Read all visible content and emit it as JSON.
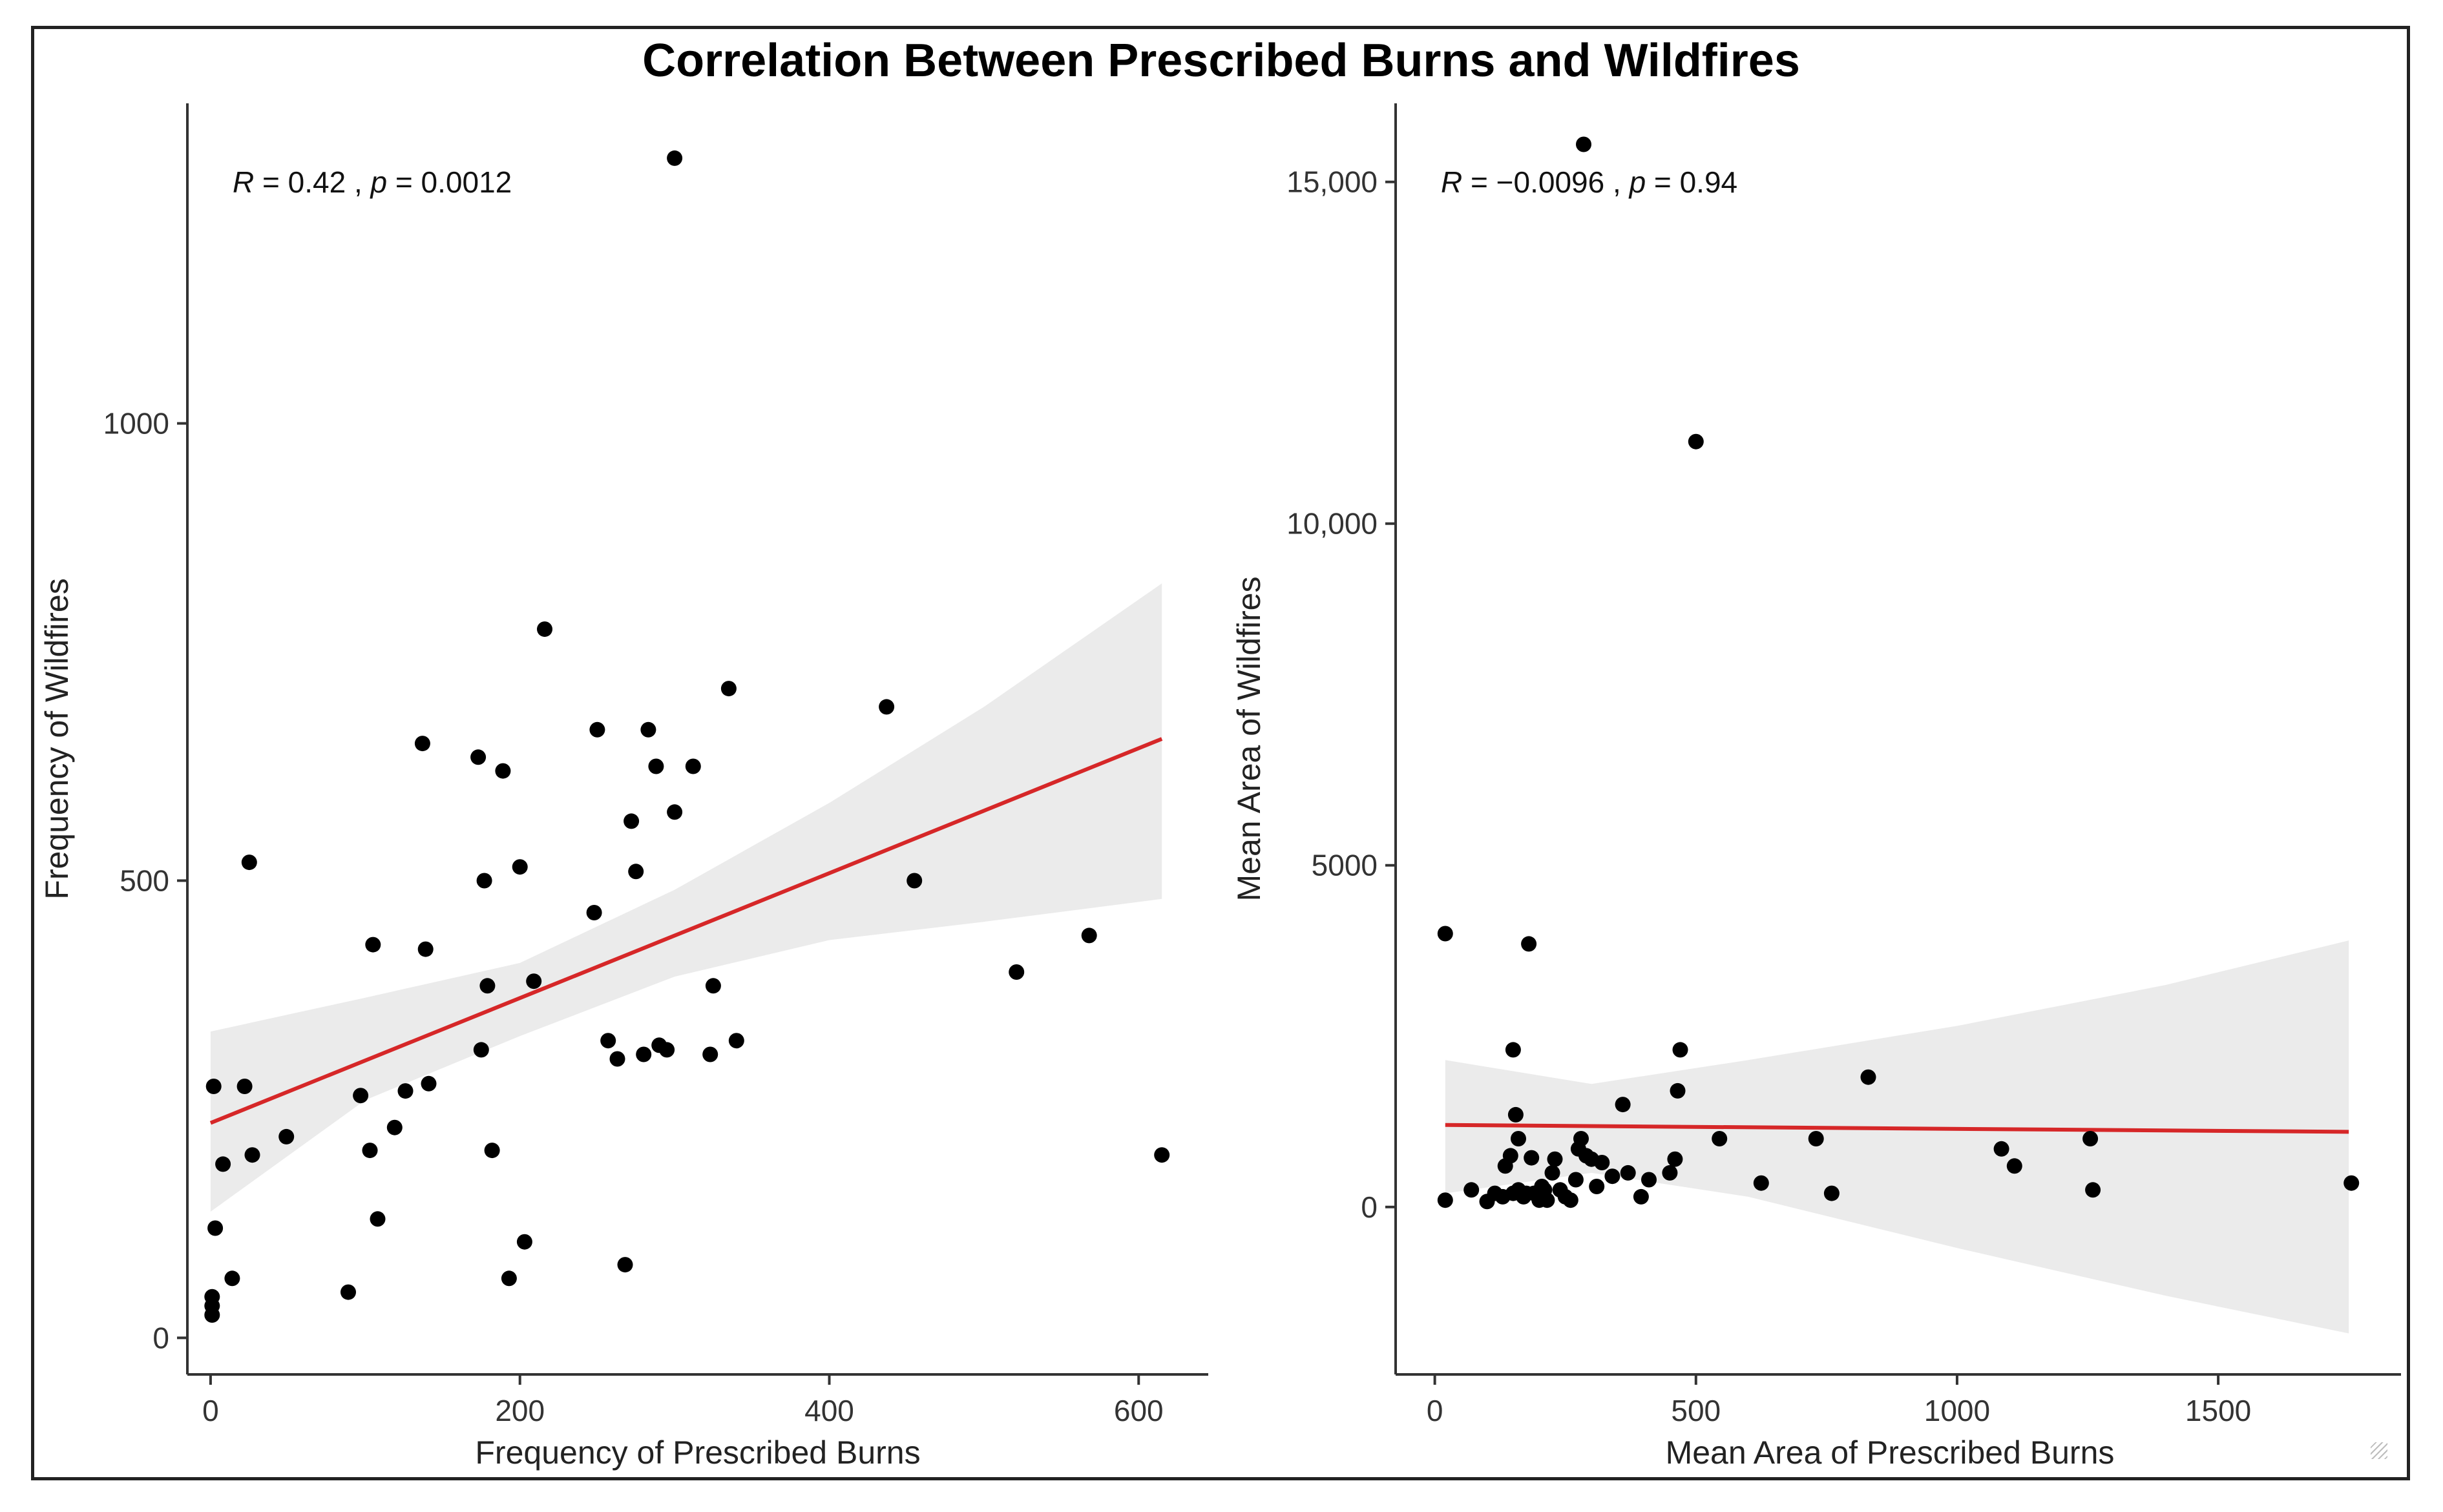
{
  "title": "Correlation Between Prescribed Burns and Wildfires",
  "colors": {
    "points": "#000000",
    "fit_line": "#d62728",
    "confidence_band": "#ebebeb",
    "axis": "#333333"
  },
  "chart_data": [
    {
      "type": "scatter",
      "xlabel": "Frequency of Prescribed Burns",
      "ylabel": "Frequency of Wildfires",
      "xlim": [
        -15,
        645
      ],
      "ylim": [
        -40,
        1350
      ],
      "xticks": [
        0,
        200,
        400,
        600
      ],
      "xtick_labels": [
        "0",
        "200",
        "400",
        "600"
      ],
      "yticks": [
        0,
        500,
        1000
      ],
      "ytick_labels": [
        "0",
        "500",
        "1000"
      ],
      "grid": false,
      "annotation": {
        "r_symbol": "R",
        "r_part": " = 0.42 , ",
        "p_symbol": "p",
        "p_part": " = 0.0012"
      },
      "fit": {
        "x": [
          0,
          615
        ],
        "y": [
          235,
          655
        ]
      },
      "band": {
        "x": [
          0,
          100,
          200,
          300,
          400,
          500,
          615
        ],
        "lower": [
          138,
          260,
          330,
          395,
          435,
          455,
          480
        ],
        "upper": [
          335,
          372,
          410,
          490,
          585,
          690,
          825
        ]
      },
      "points": [
        [
          2,
          275
        ],
        [
          1,
          45
        ],
        [
          1,
          35
        ],
        [
          1,
          25
        ],
        [
          3,
          120
        ],
        [
          8,
          190
        ],
        [
          14,
          65
        ],
        [
          22,
          275
        ],
        [
          25,
          520
        ],
        [
          27,
          200
        ],
        [
          49,
          220
        ],
        [
          89,
          50
        ],
        [
          97,
          265
        ],
        [
          103,
          205
        ],
        [
          105,
          430
        ],
        [
          108,
          130
        ],
        [
          119,
          230
        ],
        [
          126,
          270
        ],
        [
          137,
          650
        ],
        [
          139,
          425
        ],
        [
          141,
          278
        ],
        [
          173,
          635
        ],
        [
          175,
          315
        ],
        [
          177,
          500
        ],
        [
          179,
          385
        ],
        [
          182,
          205
        ],
        [
          189,
          620
        ],
        [
          193,
          65
        ],
        [
          200,
          515
        ],
        [
          203,
          105
        ],
        [
          209,
          390
        ],
        [
          216,
          775
        ],
        [
          248,
          465
        ],
        [
          250,
          665
        ],
        [
          257,
          325
        ],
        [
          263,
          305
        ],
        [
          268,
          80
        ],
        [
          272,
          565
        ],
        [
          275,
          510
        ],
        [
          280,
          310
        ],
        [
          283,
          665
        ],
        [
          288,
          625
        ],
        [
          290,
          320
        ],
        [
          295,
          315
        ],
        [
          300,
          1290
        ],
        [
          300,
          575
        ],
        [
          312,
          625
        ],
        [
          323,
          310
        ],
        [
          325,
          385
        ],
        [
          335,
          710
        ],
        [
          340,
          325
        ],
        [
          437,
          690
        ],
        [
          455,
          500
        ],
        [
          521,
          400
        ],
        [
          568,
          440
        ],
        [
          615,
          200
        ]
      ]
    },
    {
      "type": "scatter",
      "xlabel": "Mean Area of Prescribed Burns",
      "ylabel": "Mean Area of Wildfires",
      "xlim": [
        -75,
        1850
      ],
      "ylim": [
        -2450,
        16150
      ],
      "xticks": [
        0,
        500,
        1000,
        1500
      ],
      "xtick_labels": [
        "0",
        "500",
        "1000",
        "1500"
      ],
      "yticks": [
        0,
        5000,
        10000,
        15000
      ],
      "ytick_labels": [
        "0",
        "5000",
        "10,000",
        "15,000"
      ],
      "grid": false,
      "annotation": {
        "r_symbol": "R",
        "r_part": " = −0.0096 , ",
        "p_symbol": "p",
        "p_part": " = 0.94"
      },
      "fit": {
        "x": [
          20,
          1750
        ],
        "y": [
          1200,
          1100
        ]
      },
      "band": {
        "x": [
          20,
          300,
          600,
          1000,
          1400,
          1750
        ],
        "lower": [
          200,
          500,
          150,
          -600,
          -1300,
          -1850
        ],
        "upper": [
          2150,
          1800,
          2150,
          2650,
          3250,
          3900
        ]
      },
      "points": [
        [
          20,
          4000
        ],
        [
          20,
          100
        ],
        [
          70,
          250
        ],
        [
          100,
          80
        ],
        [
          115,
          200
        ],
        [
          130,
          150
        ],
        [
          135,
          600
        ],
        [
          145,
          750
        ],
        [
          150,
          2300
        ],
        [
          150,
          200
        ],
        [
          155,
          1350
        ],
        [
          160,
          250
        ],
        [
          160,
          1000
        ],
        [
          170,
          150
        ],
        [
          175,
          200
        ],
        [
          180,
          3850
        ],
        [
          185,
          720
        ],
        [
          190,
          200
        ],
        [
          200,
          100
        ],
        [
          205,
          300
        ],
        [
          210,
          250
        ],
        [
          215,
          100
        ],
        [
          225,
          500
        ],
        [
          230,
          700
        ],
        [
          240,
          250
        ],
        [
          250,
          150
        ],
        [
          260,
          100
        ],
        [
          270,
          400
        ],
        [
          275,
          850
        ],
        [
          280,
          1000
        ],
        [
          285,
          15550
        ],
        [
          290,
          750
        ],
        [
          300,
          700
        ],
        [
          310,
          300
        ],
        [
          320,
          650
        ],
        [
          340,
          450
        ],
        [
          360,
          1500
        ],
        [
          370,
          500
        ],
        [
          395,
          150
        ],
        [
          410,
          400
        ],
        [
          450,
          500
        ],
        [
          460,
          700
        ],
        [
          465,
          1700
        ],
        [
          470,
          2300
        ],
        [
          500,
          11200
        ],
        [
          545,
          1000
        ],
        [
          625,
          350
        ],
        [
          730,
          1000
        ],
        [
          760,
          200
        ],
        [
          830,
          1900
        ],
        [
          1085,
          850
        ],
        [
          1110,
          600
        ],
        [
          1255,
          1000
        ],
        [
          1260,
          250
        ],
        [
          1755,
          350
        ]
      ]
    }
  ]
}
